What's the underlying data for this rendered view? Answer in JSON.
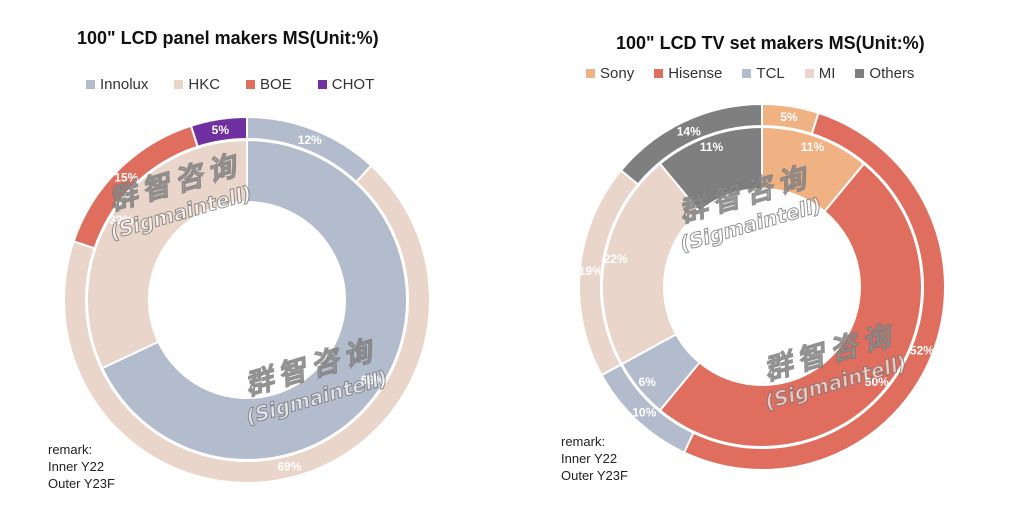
{
  "chart_data": [
    {
      "type": "pie",
      "title": "100\" LCD panel makers MS(Unit:%)",
      "legend": [
        "Innolux",
        "HKC",
        "BOE",
        "CHOT"
      ],
      "legend_position": "top",
      "series": [
        {
          "name": "Inner Y22",
          "labels": [
            "Innolux",
            "HKC"
          ],
          "values": [
            68,
            32
          ]
        },
        {
          "name": "Outer Y23F",
          "labels": [
            "Innolux",
            "HKC",
            "BOE",
            "CHOT"
          ],
          "values": [
            12,
            69,
            15,
            5
          ]
        }
      ],
      "data_labels": {
        "inner": [
          "68%",
          "32%"
        ],
        "outer": [
          "12%",
          "69%",
          "15%",
          "5%"
        ]
      },
      "colors": {
        "Innolux": "#b3bccd",
        "HKC": "#ead5cb",
        "BOE": "#df6e5e",
        "CHOT": "#7030a0"
      },
      "remark": [
        "remark:",
        "Inner Y22",
        "Outer Y23F"
      ]
    },
    {
      "type": "pie",
      "title": "100\" LCD TV set makers MS(Unit:%)",
      "legend": [
        "Sony",
        "Hisense",
        "TCL",
        "MI",
        "Others"
      ],
      "legend_position": "top",
      "series": [
        {
          "name": "Inner Y22",
          "labels": [
            "Sony",
            "Hisense",
            "TCL",
            "MI",
            "Others"
          ],
          "values": [
            11,
            50,
            6,
            22,
            11
          ]
        },
        {
          "name": "Outer Y23F",
          "labels": [
            "Sony",
            "Hisense",
            "TCL",
            "MI",
            "Others"
          ],
          "values": [
            5,
            52,
            10,
            19,
            14
          ]
        }
      ],
      "data_labels": {
        "inner": [
          "11%",
          "50%",
          "6%",
          "22%",
          "11%"
        ],
        "outer": [
          "5%",
          "52%",
          "10%",
          "19%",
          "14%"
        ]
      },
      "colors": {
        "Sony": "#f0b183",
        "Hisense": "#df6e5e",
        "TCL": "#b3bccd",
        "MI": "#ead5cb",
        "Others": "#7f7f7f"
      },
      "remark": [
        "remark:",
        "Inner Y22",
        "Outer Y23F"
      ]
    }
  ],
  "watermark": {
    "cn": "群智咨询",
    "en": "(Sigmaintell)"
  }
}
